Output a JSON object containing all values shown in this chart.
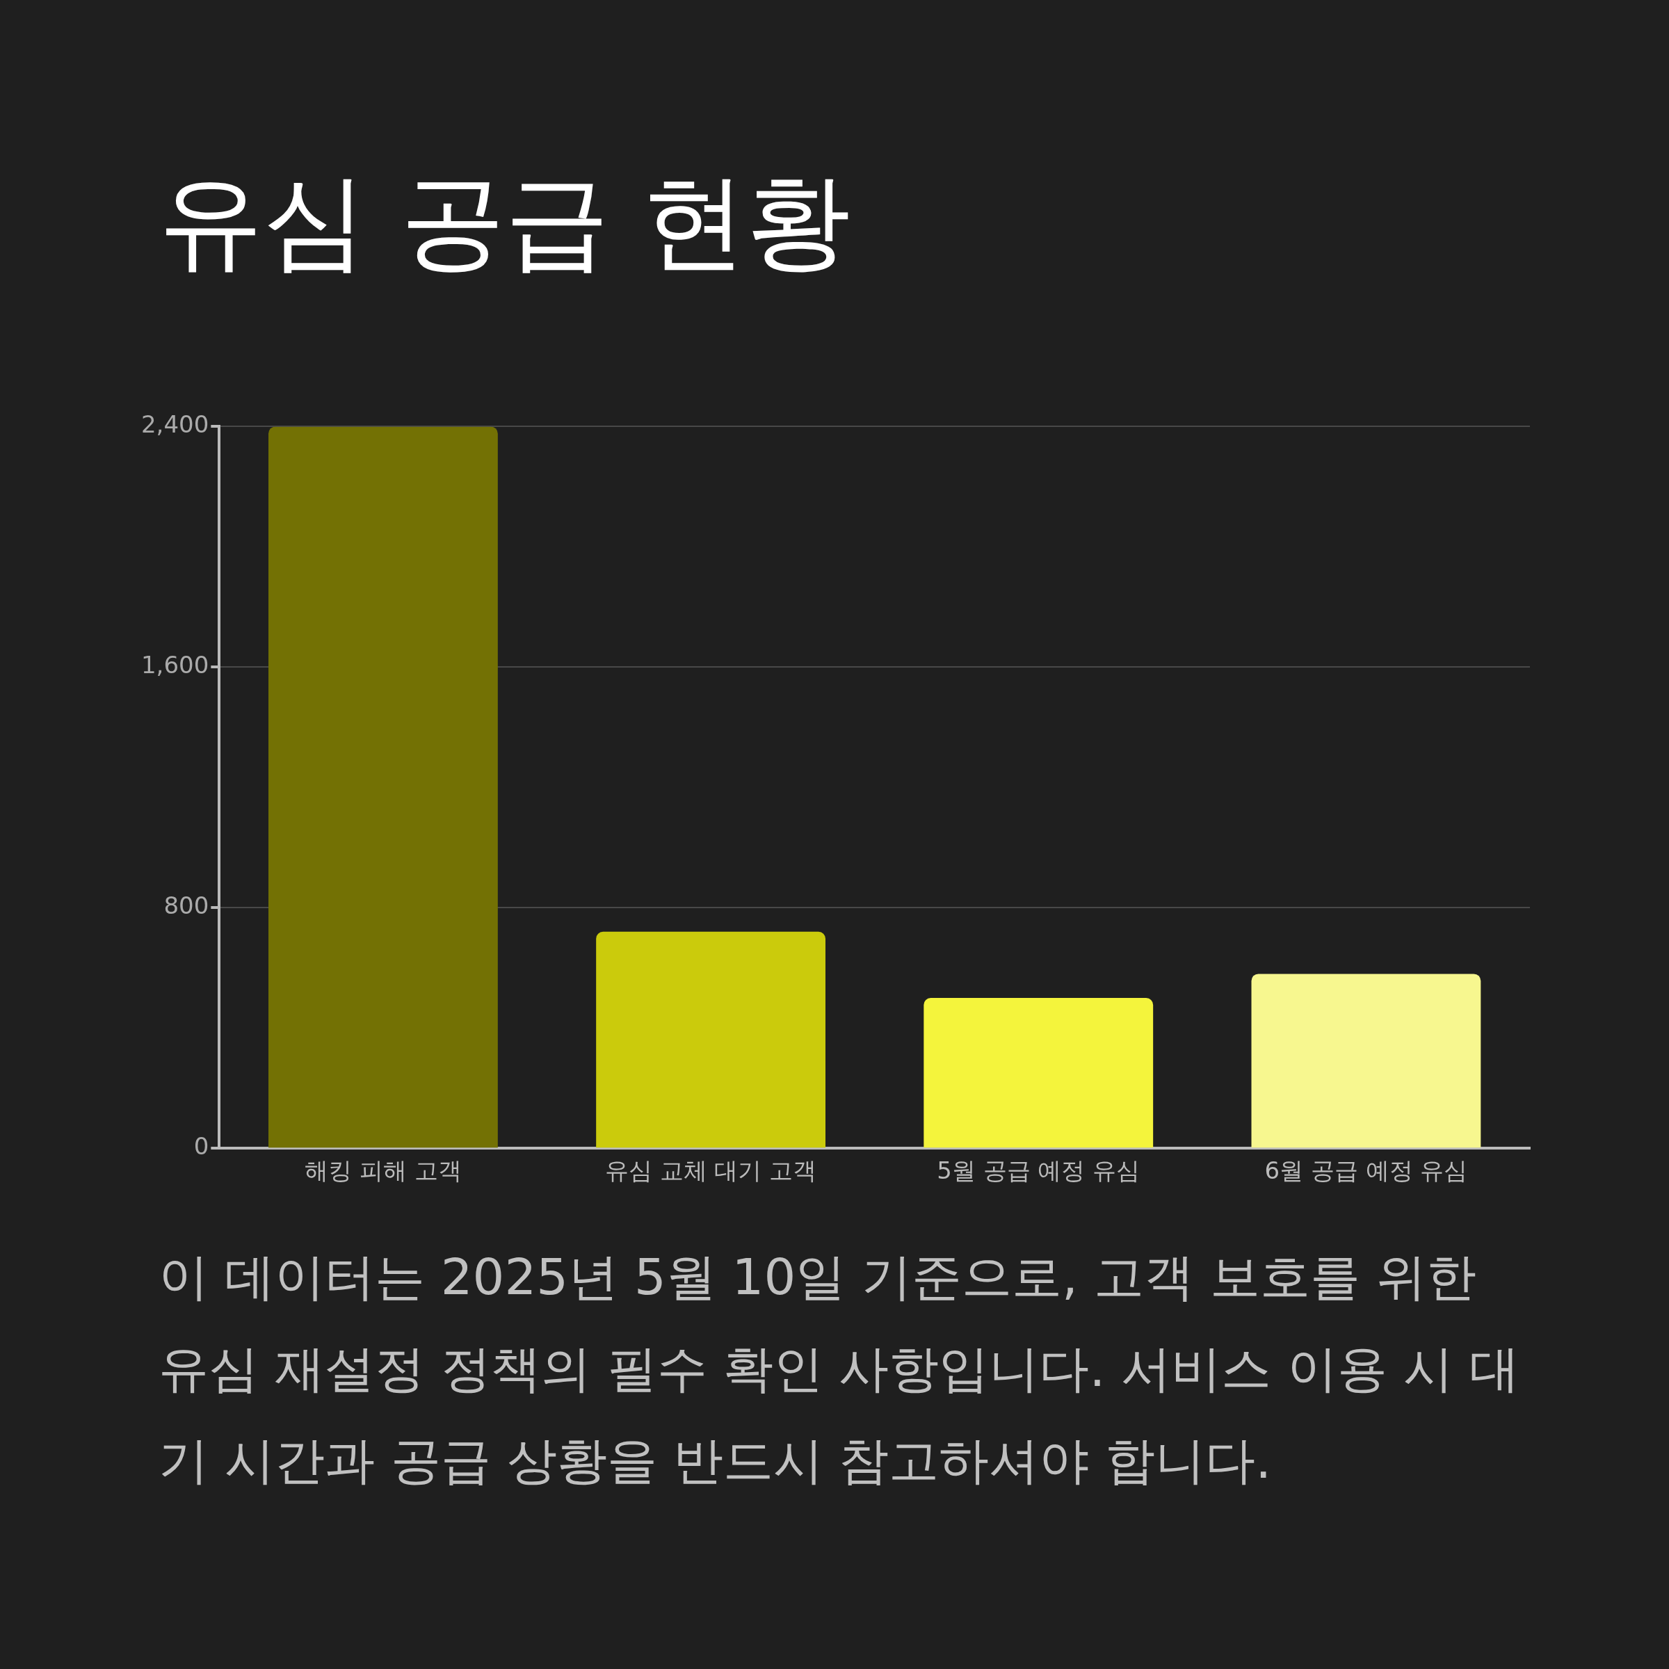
{
  "chart_data": {
    "type": "bar",
    "title": "유심 공급 현황",
    "categories": [
      "해킹 피해 고객",
      "유심 교체 대기 고객",
      "5월 공급 예정 유심",
      "6월 공급 예정 유심"
    ],
    "values": [
      2400,
      720,
      500,
      580
    ],
    "colors": [
      "#737104",
      "#cbcb0c",
      "#f4f43c",
      "#f7f78f"
    ],
    "ylim": [
      0,
      2400
    ],
    "yticks": [
      {
        "value": 0,
        "label": "0"
      },
      {
        "value": 800,
        "label": "800"
      },
      {
        "value": 1600,
        "label": "1,600"
      },
      {
        "value": 2400,
        "label": "2,400"
      }
    ],
    "grid": "y",
    "legend": false,
    "annotations": [
      "이 데이터는 2025년 5월 10일 기준으로, 고객 보호를 위한 유심 재설정 정책의 필수 확인 사항입니다. 서비스 이용 시 대기 시간과 공급 상황을 반드시 참고하셔야 합니다."
    ]
  }
}
